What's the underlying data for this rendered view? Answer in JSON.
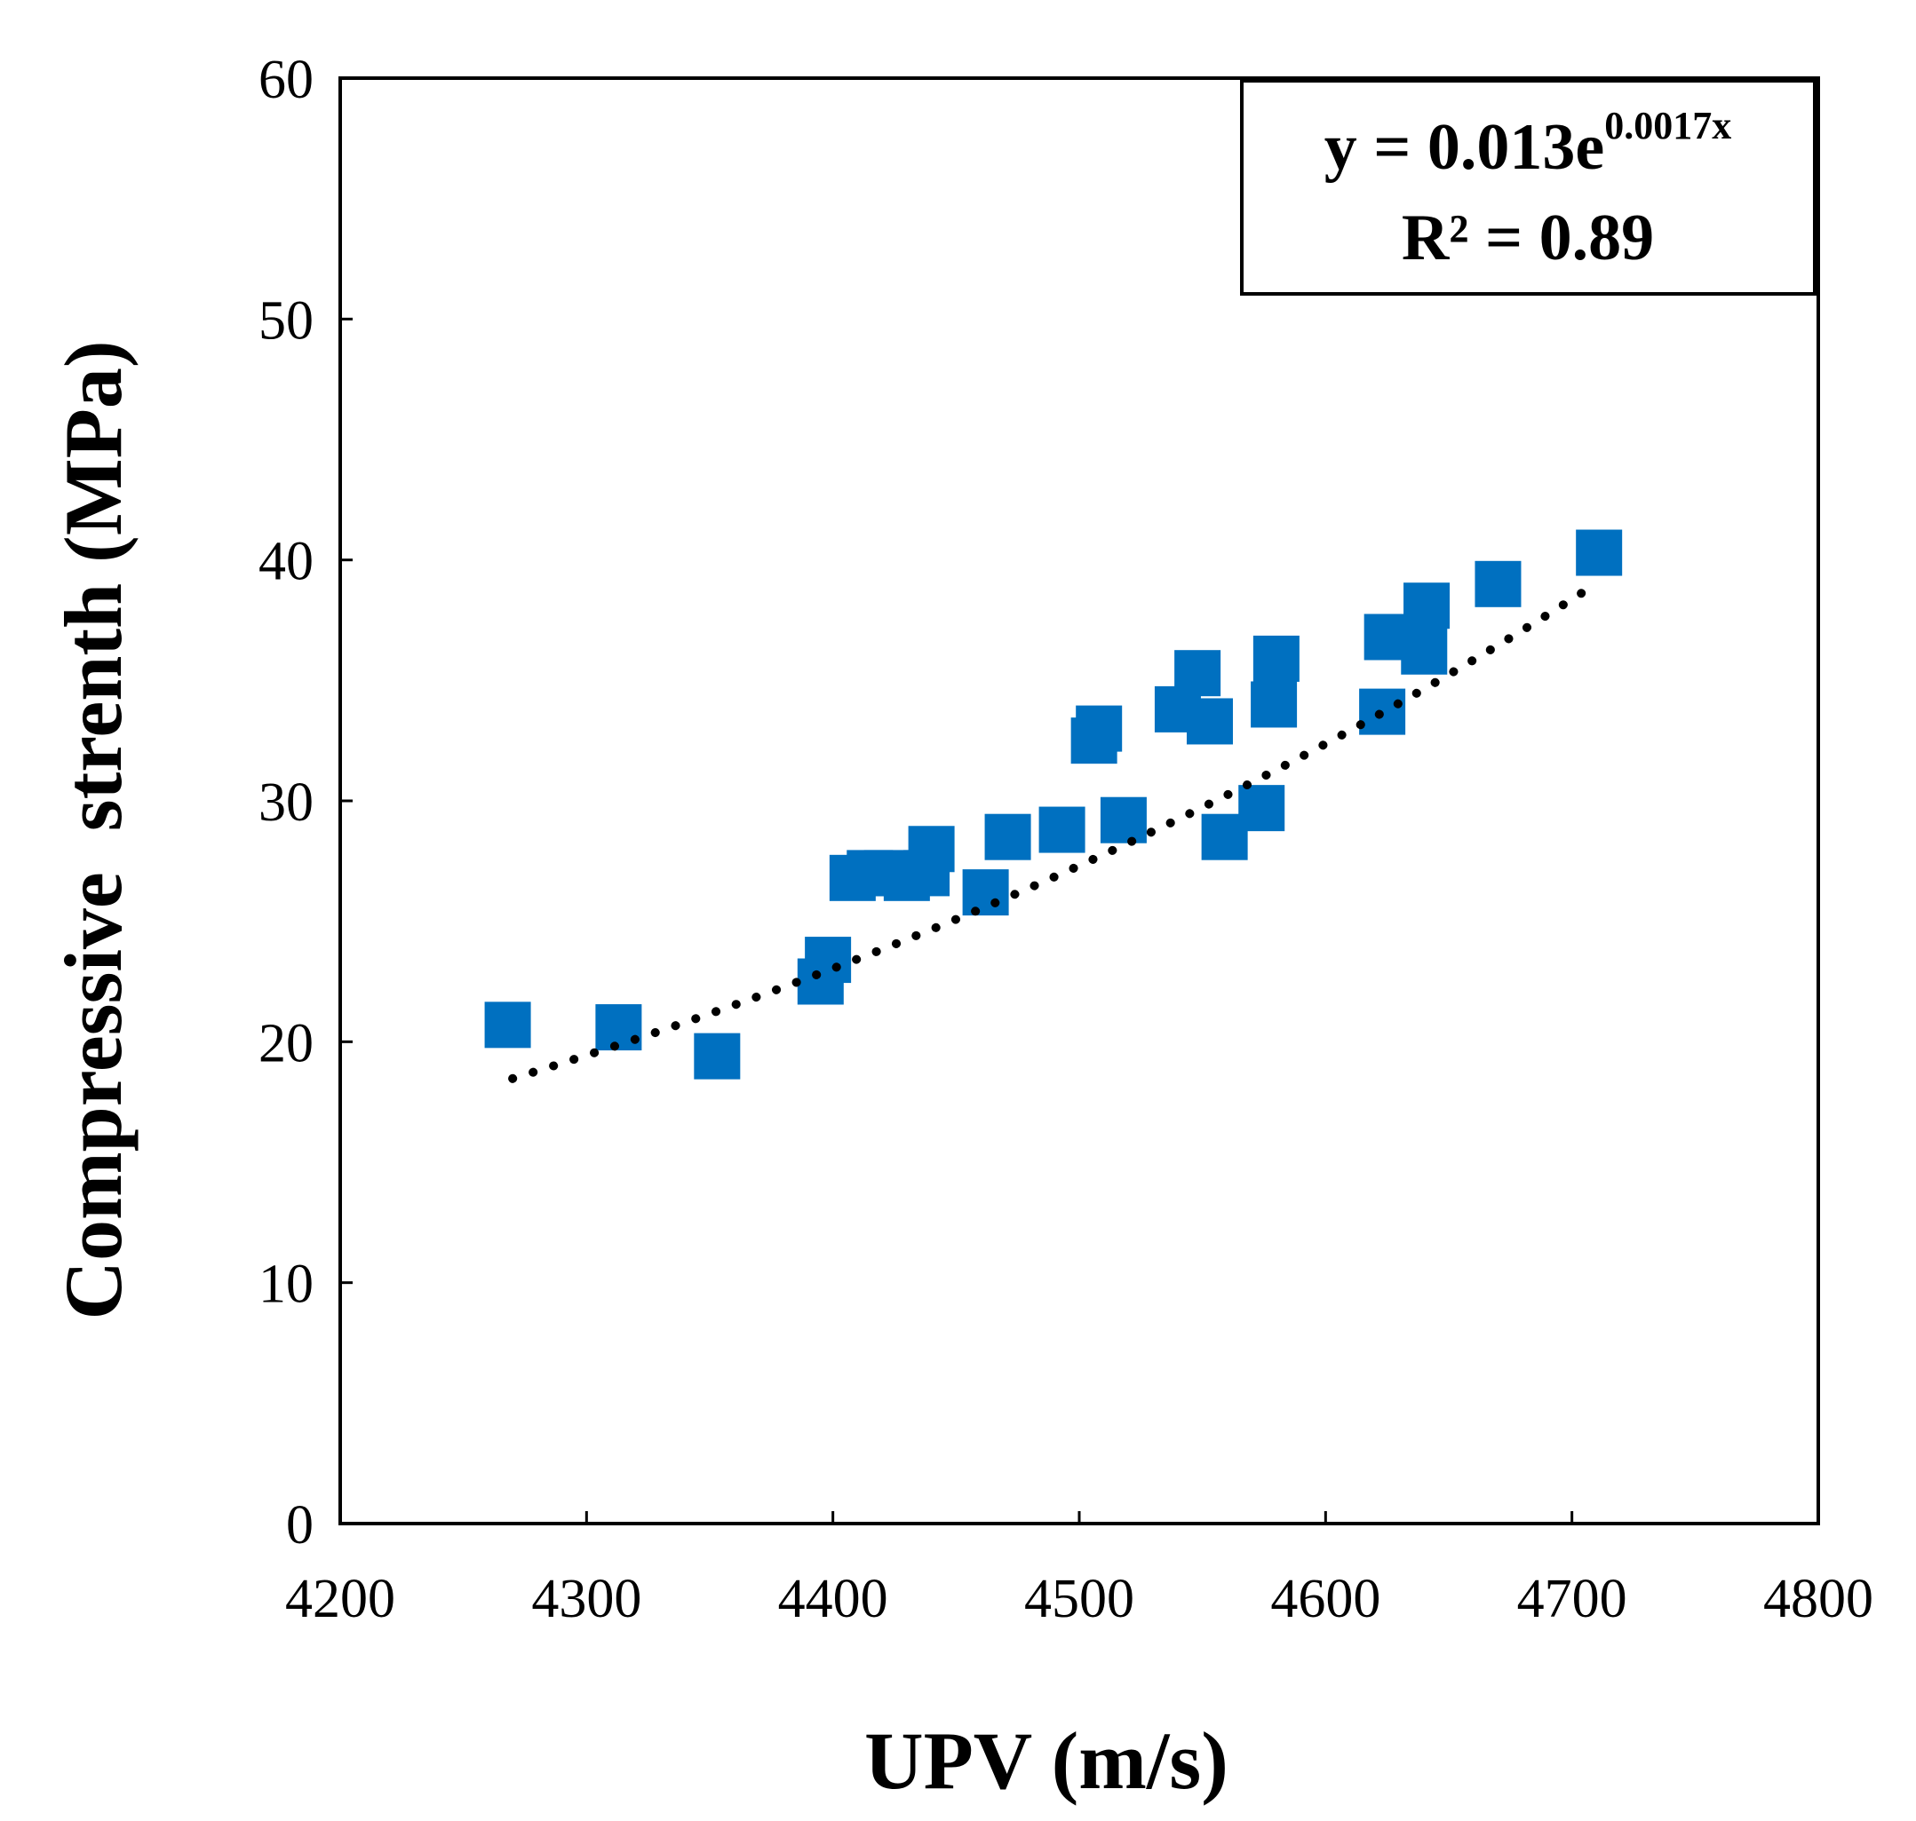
{
  "chart_data": {
    "type": "scatter",
    "xlabel": "UPV (m/s)",
    "ylabel": "Compressive  strenth (MPa)",
    "xlim": [
      4200,
      4800
    ],
    "ylim": [
      0,
      60
    ],
    "x_ticks": [
      4200,
      4300,
      4400,
      4500,
      4600,
      4700,
      4800
    ],
    "y_ticks": [
      0,
      10,
      20,
      30,
      40,
      50,
      60
    ],
    "x_tick_labels": [
      "4200",
      "4300",
      "4400",
      "4500",
      "4600",
      "4700",
      "4800"
    ],
    "y_tick_labels": [
      "0",
      "10",
      "20",
      "30",
      "40",
      "50",
      "60"
    ],
    "grid": false,
    "marker_color": "#0070C0",
    "trendline_color": "#000000",
    "series": [
      {
        "marker": "square",
        "x": [
          4268,
          4313,
          4353,
          4395,
          4398,
          4408,
          4415,
          4422,
          4430,
          4438,
          4440,
          4462,
          4471,
          4493,
          4506,
          4508,
          4518,
          4540,
          4548,
          4553,
          4559,
          4574,
          4579,
          4580,
          4623,
          4625,
          4640,
          4641,
          4670,
          4711
        ],
        "y": [
          20.7,
          20.6,
          19.4,
          22.5,
          23.4,
          26.8,
          27.0,
          27.0,
          26.8,
          27.0,
          28.0,
          26.2,
          28.5,
          28.8,
          32.5,
          33.0,
          29.2,
          33.8,
          35.3,
          33.3,
          28.5,
          29.7,
          34.0,
          35.9,
          33.7,
          36.8,
          36.2,
          38.1,
          39.0,
          40.3
        ]
      }
    ],
    "trendline": {
      "type": "exponential",
      "a": 0.013,
      "b": 0.0017,
      "x_range": [
        4270,
        4706
      ],
      "equation_prefix": "y = 0.013e",
      "equation_exponent": "0.0017x",
      "r_squared_label": "R² = 0.89"
    }
  }
}
